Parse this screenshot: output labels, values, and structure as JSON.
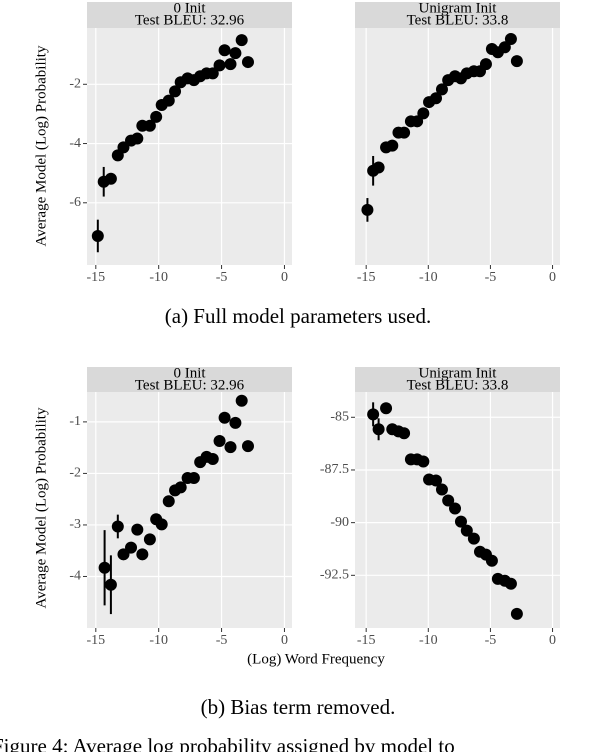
{
  "chart_data": [
    {
      "type": "scatter",
      "title": "0 Init",
      "subtitle": "Test BLEU: 32.96",
      "color": "#000000",
      "x": [
        -14.84,
        -14.37,
        -13.8,
        -13.25,
        -12.8,
        -12.2,
        -11.7,
        -11.3,
        -10.7,
        -10.2,
        -9.76,
        -9.2,
        -8.7,
        -8.25,
        -7.7,
        -7.2,
        -6.7,
        -6.19,
        -5.7,
        -5.16,
        -4.76,
        -4.29,
        -3.9,
        -3.4,
        -2.9
      ],
      "values": [
        -7.12,
        -5.29,
        -5.19,
        -4.4,
        -4.13,
        -3.9,
        -3.83,
        -3.4,
        -3.4,
        -3.1,
        -2.7,
        -2.55,
        -2.24,
        -1.93,
        -1.8,
        -1.86,
        -1.73,
        -1.63,
        -1.63,
        -1.36,
        -0.85,
        -1.32,
        -0.95,
        -0.51,
        -1.25
      ],
      "errors": [
        0.55,
        0.5,
        null,
        null,
        null,
        null,
        null,
        null,
        null,
        null,
        null,
        null,
        null,
        null,
        null,
        null,
        null,
        null,
        null,
        null,
        null,
        null,
        null,
        null,
        null
      ],
      "xlim": [
        -15.7,
        0.6
      ],
      "ylim": [
        -8.1,
        -0.1
      ],
      "xticks": [
        -15,
        -10,
        -5,
        0
      ],
      "yticks": [
        -6,
        -4,
        -2
      ],
      "grid": true
    },
    {
      "type": "scatter",
      "title": "Unigram Init",
      "subtitle": "Test BLEU: 33.8",
      "color": "#000000",
      "x": [
        -14.9,
        -14.44,
        -14.0,
        -13.4,
        -12.9,
        -12.4,
        -11.95,
        -11.4,
        -10.9,
        -10.4,
        -9.94,
        -9.38,
        -8.9,
        -8.4,
        -7.85,
        -7.37,
        -6.9,
        -6.33,
        -5.84,
        -5.36,
        -4.88,
        -4.4,
        -3.84,
        -3.35,
        -2.87
      ],
      "values": [
        -6.24,
        -4.92,
        -4.81,
        -4.13,
        -4.07,
        -3.63,
        -3.63,
        -3.25,
        -3.25,
        -2.98,
        -2.6,
        -2.47,
        -2.17,
        -1.86,
        -1.73,
        -1.8,
        -1.63,
        -1.56,
        -1.56,
        -1.32,
        -0.81,
        -0.92,
        -0.75,
        -0.47,
        -1.22
      ],
      "errors": [
        0.4,
        0.5,
        null,
        null,
        null,
        null,
        null,
        null,
        null,
        null,
        null,
        null,
        null,
        null,
        null,
        null,
        null,
        null,
        null,
        null,
        null,
        null,
        null,
        null,
        null
      ],
      "xlim": [
        -15.9,
        0.6
      ],
      "ylim": [
        -8.1,
        -0.1
      ],
      "xticks": [
        -15,
        -10,
        -5,
        0
      ],
      "grid": true
    },
    {
      "type": "scatter",
      "title": "0 Init",
      "subtitle": "Test BLEU: 32.96",
      "color": "#000000",
      "x": [
        -14.3,
        -13.8,
        -13.25,
        -12.8,
        -12.2,
        -11.7,
        -11.3,
        -10.7,
        -10.2,
        -9.76,
        -9.2,
        -8.7,
        -8.25,
        -7.7,
        -7.2,
        -6.7,
        -6.19,
        -5.7,
        -5.16,
        -4.76,
        -4.29,
        -3.9,
        -3.4,
        -2.9
      ],
      "values": [
        -3.83,
        -4.16,
        -3.03,
        -3.57,
        -3.44,
        -3.09,
        -3.57,
        -3.28,
        -2.89,
        -2.99,
        -2.54,
        -2.33,
        -2.27,
        -2.09,
        -2.09,
        -1.78,
        -1.68,
        -1.72,
        -1.37,
        -0.92,
        -1.49,
        -1.02,
        -0.59,
        -1.47
      ],
      "errors": [
        0.73,
        0.57,
        0.23,
        null,
        null,
        null,
        null,
        null,
        null,
        null,
        null,
        null,
        null,
        null,
        null,
        null,
        null,
        null,
        null,
        null,
        null,
        null,
        null,
        null
      ],
      "xlim": [
        -15.7,
        0.6
      ],
      "ylim": [
        -5.0,
        -0.42
      ],
      "xticks": [
        -15,
        -10,
        -5,
        0
      ],
      "yticks": [
        -4,
        -3,
        -2,
        -1
      ],
      "grid": true
    },
    {
      "type": "scatter",
      "title": "Unigram Init",
      "subtitle": "Test BLEU: 33.8",
      "color": "#000000",
      "x": [
        -14.44,
        -14.0,
        -13.4,
        -12.9,
        -12.4,
        -11.95,
        -11.4,
        -10.9,
        -10.4,
        -9.94,
        -9.38,
        -8.9,
        -8.4,
        -7.85,
        -7.37,
        -6.9,
        -6.33,
        -5.84,
        -5.36,
        -4.88,
        -4.4,
        -3.84,
        -3.35,
        -2.87
      ],
      "values": [
        -84.86,
        -85.57,
        -84.57,
        -85.57,
        -85.67,
        -85.76,
        -87.0,
        -87.0,
        -87.1,
        -87.95,
        -88.0,
        -88.43,
        -88.95,
        -89.33,
        -89.95,
        -90.38,
        -90.76,
        -91.38,
        -91.52,
        -91.81,
        -92.67,
        -92.76,
        -92.9,
        -94.33
      ],
      "errors": [
        0.57,
        0.52,
        null,
        null,
        null,
        null,
        null,
        null,
        null,
        null,
        null,
        null,
        null,
        null,
        null,
        null,
        null,
        null,
        null,
        null,
        null,
        null,
        null,
        null
      ],
      "xlim": [
        -15.9,
        0.6
      ],
      "ylim": [
        -95.0,
        -83.8
      ],
      "xticks": [
        -15,
        -10,
        -5,
        0
      ],
      "yticks": [
        -92.5,
        -90,
        -87.5,
        -85
      ],
      "grid": true
    }
  ],
  "figure": {
    "y_label": "Average Model (Log) Probability",
    "x_label": "(Log) Word Frequency",
    "captions": [
      "(a) Full model parameters used.",
      "(b) Bias term removed."
    ],
    "figure_caption": "Figure 4: Average log probability assigned by model to"
  }
}
